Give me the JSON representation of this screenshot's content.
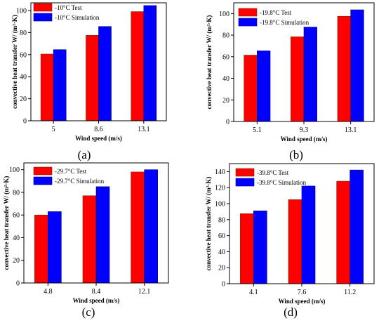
{
  "chart_data": [
    {
      "type": "bar",
      "panel_label": "(a)",
      "categories": [
        "5",
        "8.6",
        "13.1"
      ],
      "series": [
        {
          "name": "-10°C Test",
          "values": [
            60.5,
            77.5,
            99
          ],
          "color": "#ff0000"
        },
        {
          "name": "-10°C Simulation",
          "values": [
            64.5,
            85.5,
            104.5
          ],
          "color": "#0000ff"
        }
      ],
      "xlabel": "Wind speed",
      "xunit": "m/s",
      "ylabel": "convective heat transfer",
      "yunit": "W/ (m²·K)",
      "ylim": [
        0,
        107
      ],
      "yticks": [
        0,
        20,
        40,
        60,
        80,
        100
      ],
      "legend": "top-left",
      "grid": false
    },
    {
      "type": "bar",
      "panel_label": "(b)",
      "categories": [
        "5.1",
        "9.3",
        "13.1"
      ],
      "series": [
        {
          "name": "-19.8°C Test",
          "values": [
            61.5,
            78.5,
            97.5
          ],
          "color": "#ff0000"
        },
        {
          "name": "-19.8°C Simulation",
          "values": [
            65.5,
            87.5,
            103.5
          ],
          "color": "#0000ff"
        }
      ],
      "xlabel": "Wind speed",
      "xunit": "m/s",
      "ylabel": "convective heat transfer",
      "yunit": "W/ (m²·K)",
      "ylim": [
        0,
        110
      ],
      "yticks": [
        0,
        20,
        40,
        60,
        80,
        100
      ],
      "legend": "top-left",
      "grid": false
    },
    {
      "type": "bar",
      "panel_label": "(c)",
      "categories": [
        "4.8",
        "8.4",
        "12.1"
      ],
      "series": [
        {
          "name": "-29.7°C Test",
          "values": [
            60,
            77,
            98
          ],
          "color": "#ff0000"
        },
        {
          "name": "-29.7°C Simulation",
          "values": [
            63,
            85,
            100
          ],
          "color": "#0000ff"
        }
      ],
      "xlabel": "Wind speed",
      "xunit": "m/s",
      "ylabel": "convective heat transfer",
      "yunit": "W/ (m²·K)",
      "ylim": [
        0,
        106
      ],
      "yticks": [
        0,
        20,
        40,
        60,
        80,
        100
      ],
      "legend": "top-left",
      "grid": false
    },
    {
      "type": "bar",
      "panel_label": "(d)",
      "categories": [
        "4.1",
        "7.6",
        "11.2"
      ],
      "series": [
        {
          "name": "-39.8°C Test",
          "values": [
            87.5,
            105,
            128
          ],
          "color": "#ff0000"
        },
        {
          "name": "-39.8°C Simulation",
          "values": [
            91,
            122,
            142
          ],
          "color": "#0000ff"
        }
      ],
      "xlabel": "Wind speed",
      "xunit": "m/s",
      "ylabel": "convective heat transfer",
      "yunit": "W/ (m²·K)",
      "ylim": [
        0,
        150
      ],
      "yticks": [
        0,
        20,
        40,
        60,
        80,
        100,
        120,
        140
      ],
      "legend": "top-left",
      "grid": false
    }
  ]
}
